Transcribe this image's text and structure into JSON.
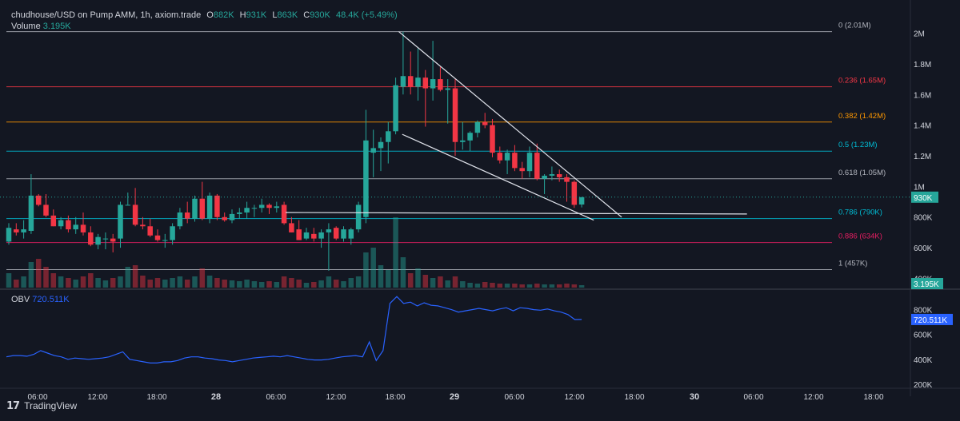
{
  "header": {
    "symbol": "chudhouse/USD on Pump AMM, 1h, axiom.trade",
    "o_label": "O",
    "o_value": "882K",
    "h_label": "H",
    "h_value": "931K",
    "l_label": "L",
    "l_value": "863K",
    "c_label": "C",
    "c_value": "930K",
    "change": "48.4K (+5.49%)",
    "volume_label": "Volume",
    "volume_value": "3.195K"
  },
  "obv": {
    "label": "OBV",
    "value": "720.511K"
  },
  "colors": {
    "up": "#26a69a",
    "down": "#f23645",
    "obv_line": "#2962ff",
    "bg": "#131722"
  },
  "footer": {
    "brand": "TradingView"
  },
  "chart_data": [
    {
      "type": "candlestick",
      "x_ticks": [
        "06:00",
        "12:00",
        "18:00",
        "28",
        "06:00",
        "12:00",
        "18:00",
        "29",
        "06:00",
        "12:00",
        "18:00",
        "30",
        "06:00",
        "12:00",
        "18:00"
      ],
      "y_ticks": [
        "2M",
        "1.8M",
        "1.6M",
        "1.4M",
        "1.2M",
        "1M",
        "800K",
        "600K",
        "400K"
      ],
      "ylim": [
        340000,
        2060000
      ],
      "last_price_label": "930K",
      "volume_label_badge": "3.195K",
      "fib_levels": [
        {
          "ratio": "0",
          "price_label": "2.01M",
          "value": 2010000,
          "color": "#b2b5be"
        },
        {
          "ratio": "0.236",
          "price_label": "1.65M",
          "value": 1650000,
          "color": "#f23645"
        },
        {
          "ratio": "0.382",
          "price_label": "1.42M",
          "value": 1420000,
          "color": "#ff9800"
        },
        {
          "ratio": "0.5",
          "price_label": "1.23M",
          "value": 1230000,
          "color": "#00bcd4"
        },
        {
          "ratio": "0.618",
          "price_label": "1.05M",
          "value": 1050000,
          "color": "#b2b5be"
        },
        {
          "ratio": "0.786",
          "price_label": "790K",
          "value": 790000,
          "color": "#00bcd4"
        },
        {
          "ratio": "0.886",
          "price_label": "634K",
          "value": 634000,
          "color": "#e91e63"
        },
        {
          "ratio": "1",
          "price_label": "457K",
          "value": 457000,
          "color": "#b2b5be"
        }
      ],
      "candles": [
        {
          "o": 640000,
          "h": 760000,
          "l": 620000,
          "c": 730000,
          "v": 18
        },
        {
          "o": 720000,
          "h": 760000,
          "l": 680000,
          "c": 700000,
          "v": 10
        },
        {
          "o": 700000,
          "h": 780000,
          "l": 660000,
          "c": 720000,
          "v": 14
        },
        {
          "o": 710000,
          "h": 1080000,
          "l": 690000,
          "c": 940000,
          "v": 32
        },
        {
          "o": 940000,
          "h": 950000,
          "l": 870000,
          "c": 880000,
          "v": 36
        },
        {
          "o": 880000,
          "h": 950000,
          "l": 800000,
          "c": 810000,
          "v": 26
        },
        {
          "o": 810000,
          "h": 850000,
          "l": 740000,
          "c": 740000,
          "v": 18
        },
        {
          "o": 740000,
          "h": 800000,
          "l": 720000,
          "c": 780000,
          "v": 14
        },
        {
          "o": 780000,
          "h": 810000,
          "l": 700000,
          "c": 720000,
          "v": 12
        },
        {
          "o": 720000,
          "h": 800000,
          "l": 690000,
          "c": 750000,
          "v": 10
        },
        {
          "o": 750000,
          "h": 830000,
          "l": 680000,
          "c": 700000,
          "v": 14
        },
        {
          "o": 700000,
          "h": 740000,
          "l": 610000,
          "c": 620000,
          "v": 18
        },
        {
          "o": 620000,
          "h": 690000,
          "l": 590000,
          "c": 670000,
          "v": 12
        },
        {
          "o": 660000,
          "h": 700000,
          "l": 590000,
          "c": 660000,
          "v": 9
        },
        {
          "o": 660000,
          "h": 690000,
          "l": 570000,
          "c": 640000,
          "v": 12
        },
        {
          "o": 660000,
          "h": 900000,
          "l": 600000,
          "c": 880000,
          "v": 14
        },
        {
          "o": 880000,
          "h": 960000,
          "l": 880000,
          "c": 880000,
          "v": 26
        },
        {
          "o": 880000,
          "h": 990000,
          "l": 740000,
          "c": 750000,
          "v": 28
        },
        {
          "o": 750000,
          "h": 800000,
          "l": 720000,
          "c": 740000,
          "v": 15
        },
        {
          "o": 740000,
          "h": 790000,
          "l": 670000,
          "c": 680000,
          "v": 10
        },
        {
          "o": 680000,
          "h": 720000,
          "l": 640000,
          "c": 650000,
          "v": 12
        },
        {
          "o": 650000,
          "h": 690000,
          "l": 600000,
          "c": 650000,
          "v": 10
        },
        {
          "o": 650000,
          "h": 760000,
          "l": 620000,
          "c": 740000,
          "v": 12
        },
        {
          "o": 740000,
          "h": 860000,
          "l": 720000,
          "c": 830000,
          "v": 14
        },
        {
          "o": 830000,
          "h": 900000,
          "l": 760000,
          "c": 790000,
          "v": 10
        },
        {
          "o": 790000,
          "h": 940000,
          "l": 770000,
          "c": 920000,
          "v": 14
        },
        {
          "o": 920000,
          "h": 1030000,
          "l": 780000,
          "c": 790000,
          "v": 24
        },
        {
          "o": 790000,
          "h": 960000,
          "l": 760000,
          "c": 940000,
          "v": 15
        },
        {
          "o": 940000,
          "h": 950000,
          "l": 780000,
          "c": 800000,
          "v": 12
        },
        {
          "o": 800000,
          "h": 830000,
          "l": 770000,
          "c": 780000,
          "v": 10
        },
        {
          "o": 780000,
          "h": 850000,
          "l": 760000,
          "c": 820000,
          "v": 9
        },
        {
          "o": 820000,
          "h": 860000,
          "l": 790000,
          "c": 830000,
          "v": 8
        },
        {
          "o": 830000,
          "h": 900000,
          "l": 790000,
          "c": 860000,
          "v": 10
        },
        {
          "o": 860000,
          "h": 880000,
          "l": 800000,
          "c": 860000,
          "v": 8
        },
        {
          "o": 860000,
          "h": 920000,
          "l": 830000,
          "c": 880000,
          "v": 7
        },
        {
          "o": 880000,
          "h": 890000,
          "l": 820000,
          "c": 860000,
          "v": 8
        },
        {
          "o": 860000,
          "h": 900000,
          "l": 830000,
          "c": 870000,
          "v": 7
        },
        {
          "o": 880000,
          "h": 900000,
          "l": 750000,
          "c": 760000,
          "v": 14
        },
        {
          "o": 760000,
          "h": 800000,
          "l": 700000,
          "c": 700000,
          "v": 12
        },
        {
          "o": 720000,
          "h": 780000,
          "l": 650000,
          "c": 650000,
          "v": 10
        },
        {
          "o": 660000,
          "h": 730000,
          "l": 650000,
          "c": 700000,
          "v": 6
        },
        {
          "o": 690000,
          "h": 730000,
          "l": 640000,
          "c": 660000,
          "v": 7
        },
        {
          "o": 660000,
          "h": 720000,
          "l": 600000,
          "c": 700000,
          "v": 9
        },
        {
          "o": 700000,
          "h": 760000,
          "l": 450000,
          "c": 720000,
          "v": 14
        },
        {
          "o": 730000,
          "h": 740000,
          "l": 650000,
          "c": 660000,
          "v": 10
        },
        {
          "o": 660000,
          "h": 740000,
          "l": 640000,
          "c": 720000,
          "v": 8
        },
        {
          "o": 660000,
          "h": 730000,
          "l": 620000,
          "c": 720000,
          "v": 12
        },
        {
          "o": 720000,
          "h": 900000,
          "l": 700000,
          "c": 880000,
          "v": 14
        },
        {
          "o": 800000,
          "h": 1500000,
          "l": 760000,
          "c": 1300000,
          "v": 44
        },
        {
          "o": 1220000,
          "h": 1370000,
          "l": 1060000,
          "c": 1250000,
          "v": 50
        },
        {
          "o": 1250000,
          "h": 1320000,
          "l": 1100000,
          "c": 1290000,
          "v": 28
        },
        {
          "o": 1290000,
          "h": 1420000,
          "l": 1150000,
          "c": 1360000,
          "v": 22
        },
        {
          "o": 1360000,
          "h": 1710000,
          "l": 1340000,
          "c": 1660000,
          "v": 88
        },
        {
          "o": 1650000,
          "h": 2010000,
          "l": 1600000,
          "c": 1720000,
          "v": 38
        },
        {
          "o": 1720000,
          "h": 1880000,
          "l": 1600000,
          "c": 1650000,
          "v": 18
        },
        {
          "o": 1650000,
          "h": 1900000,
          "l": 1560000,
          "c": 1710000,
          "v": 24
        },
        {
          "o": 1710000,
          "h": 1760000,
          "l": 1390000,
          "c": 1640000,
          "v": 16
        },
        {
          "o": 1640000,
          "h": 1950000,
          "l": 1560000,
          "c": 1700000,
          "v": 12
        },
        {
          "o": 1700000,
          "h": 1780000,
          "l": 1620000,
          "c": 1630000,
          "v": 14
        },
        {
          "o": 1630000,
          "h": 1700000,
          "l": 1410000,
          "c": 1640000,
          "v": 9
        },
        {
          "o": 1640000,
          "h": 1700000,
          "l": 1200000,
          "c": 1290000,
          "v": 14
        },
        {
          "o": 1290000,
          "h": 1420000,
          "l": 1240000,
          "c": 1300000,
          "v": 8
        },
        {
          "o": 1300000,
          "h": 1360000,
          "l": 1230000,
          "c": 1350000,
          "v": 6
        },
        {
          "o": 1350000,
          "h": 1430000,
          "l": 1320000,
          "c": 1420000,
          "v": 5
        },
        {
          "o": 1420000,
          "h": 1480000,
          "l": 1380000,
          "c": 1400000,
          "v": 7
        },
        {
          "o": 1400000,
          "h": 1440000,
          "l": 1190000,
          "c": 1220000,
          "v": 6
        },
        {
          "o": 1220000,
          "h": 1260000,
          "l": 1150000,
          "c": 1170000,
          "v": 5
        },
        {
          "o": 1170000,
          "h": 1240000,
          "l": 1080000,
          "c": 1220000,
          "v": 5
        },
        {
          "o": 1220000,
          "h": 1270000,
          "l": 1100000,
          "c": 1120000,
          "v": 5
        },
        {
          "o": 1120000,
          "h": 1160000,
          "l": 1050000,
          "c": 1100000,
          "v": 4
        },
        {
          "o": 1100000,
          "h": 1260000,
          "l": 1060000,
          "c": 1220000,
          "v": 4
        },
        {
          "o": 1220000,
          "h": 1280000,
          "l": 1040000,
          "c": 1050000,
          "v": 5
        },
        {
          "o": 1050000,
          "h": 1080000,
          "l": 950000,
          "c": 1070000,
          "v": 4
        },
        {
          "o": 1070000,
          "h": 1130000,
          "l": 1040000,
          "c": 1080000,
          "v": 4
        },
        {
          "o": 1080000,
          "h": 1110000,
          "l": 1030000,
          "c": 1060000,
          "v": 4
        },
        {
          "o": 1060000,
          "h": 1080000,
          "l": 900000,
          "c": 1030000,
          "v": 5
        },
        {
          "o": 1030000,
          "h": 1040000,
          "l": 860000,
          "c": 880000,
          "v": 4
        },
        {
          "o": 882000,
          "h": 931000,
          "l": 863000,
          "c": 930000,
          "v": 3
        }
      ],
      "trendlines": [
        {
          "x1": 22.4,
          "y1": 2010000,
          "x2": 35.2,
          "y2": 800000
        },
        {
          "x1": 22.6,
          "y1": 1340000,
          "x2": 33.6,
          "y2": 780000
        },
        {
          "x1": 15.9,
          "y1": 830000,
          "x2": 42.4,
          "y2": 820000
        }
      ]
    },
    {
      "type": "line",
      "name": "OBV",
      "y_ticks": [
        "800K",
        "600K",
        "400K",
        "200K"
      ],
      "ylim": [
        180000,
        900000
      ],
      "last_value_label": "720.511K",
      "values": [
        420000,
        430000,
        430000,
        425000,
        440000,
        470000,
        450000,
        430000,
        420000,
        400000,
        410000,
        405000,
        400000,
        405000,
        410000,
        420000,
        440000,
        460000,
        400000,
        390000,
        380000,
        370000,
        370000,
        380000,
        380000,
        390000,
        410000,
        420000,
        420000,
        410000,
        405000,
        395000,
        390000,
        380000,
        390000,
        400000,
        410000,
        415000,
        420000,
        425000,
        420000,
        430000,
        420000,
        410000,
        400000,
        395000,
        395000,
        400000,
        410000,
        420000,
        425000,
        430000,
        420000,
        540000,
        390000,
        470000,
        850000,
        905000,
        850000,
        860000,
        830000,
        855000,
        835000,
        830000,
        815000,
        800000,
        780000,
        790000,
        800000,
        810000,
        800000,
        790000,
        805000,
        815000,
        790000,
        815000,
        810000,
        800000,
        795000,
        805000,
        790000,
        780000,
        760000,
        720000,
        720511
      ]
    }
  ]
}
